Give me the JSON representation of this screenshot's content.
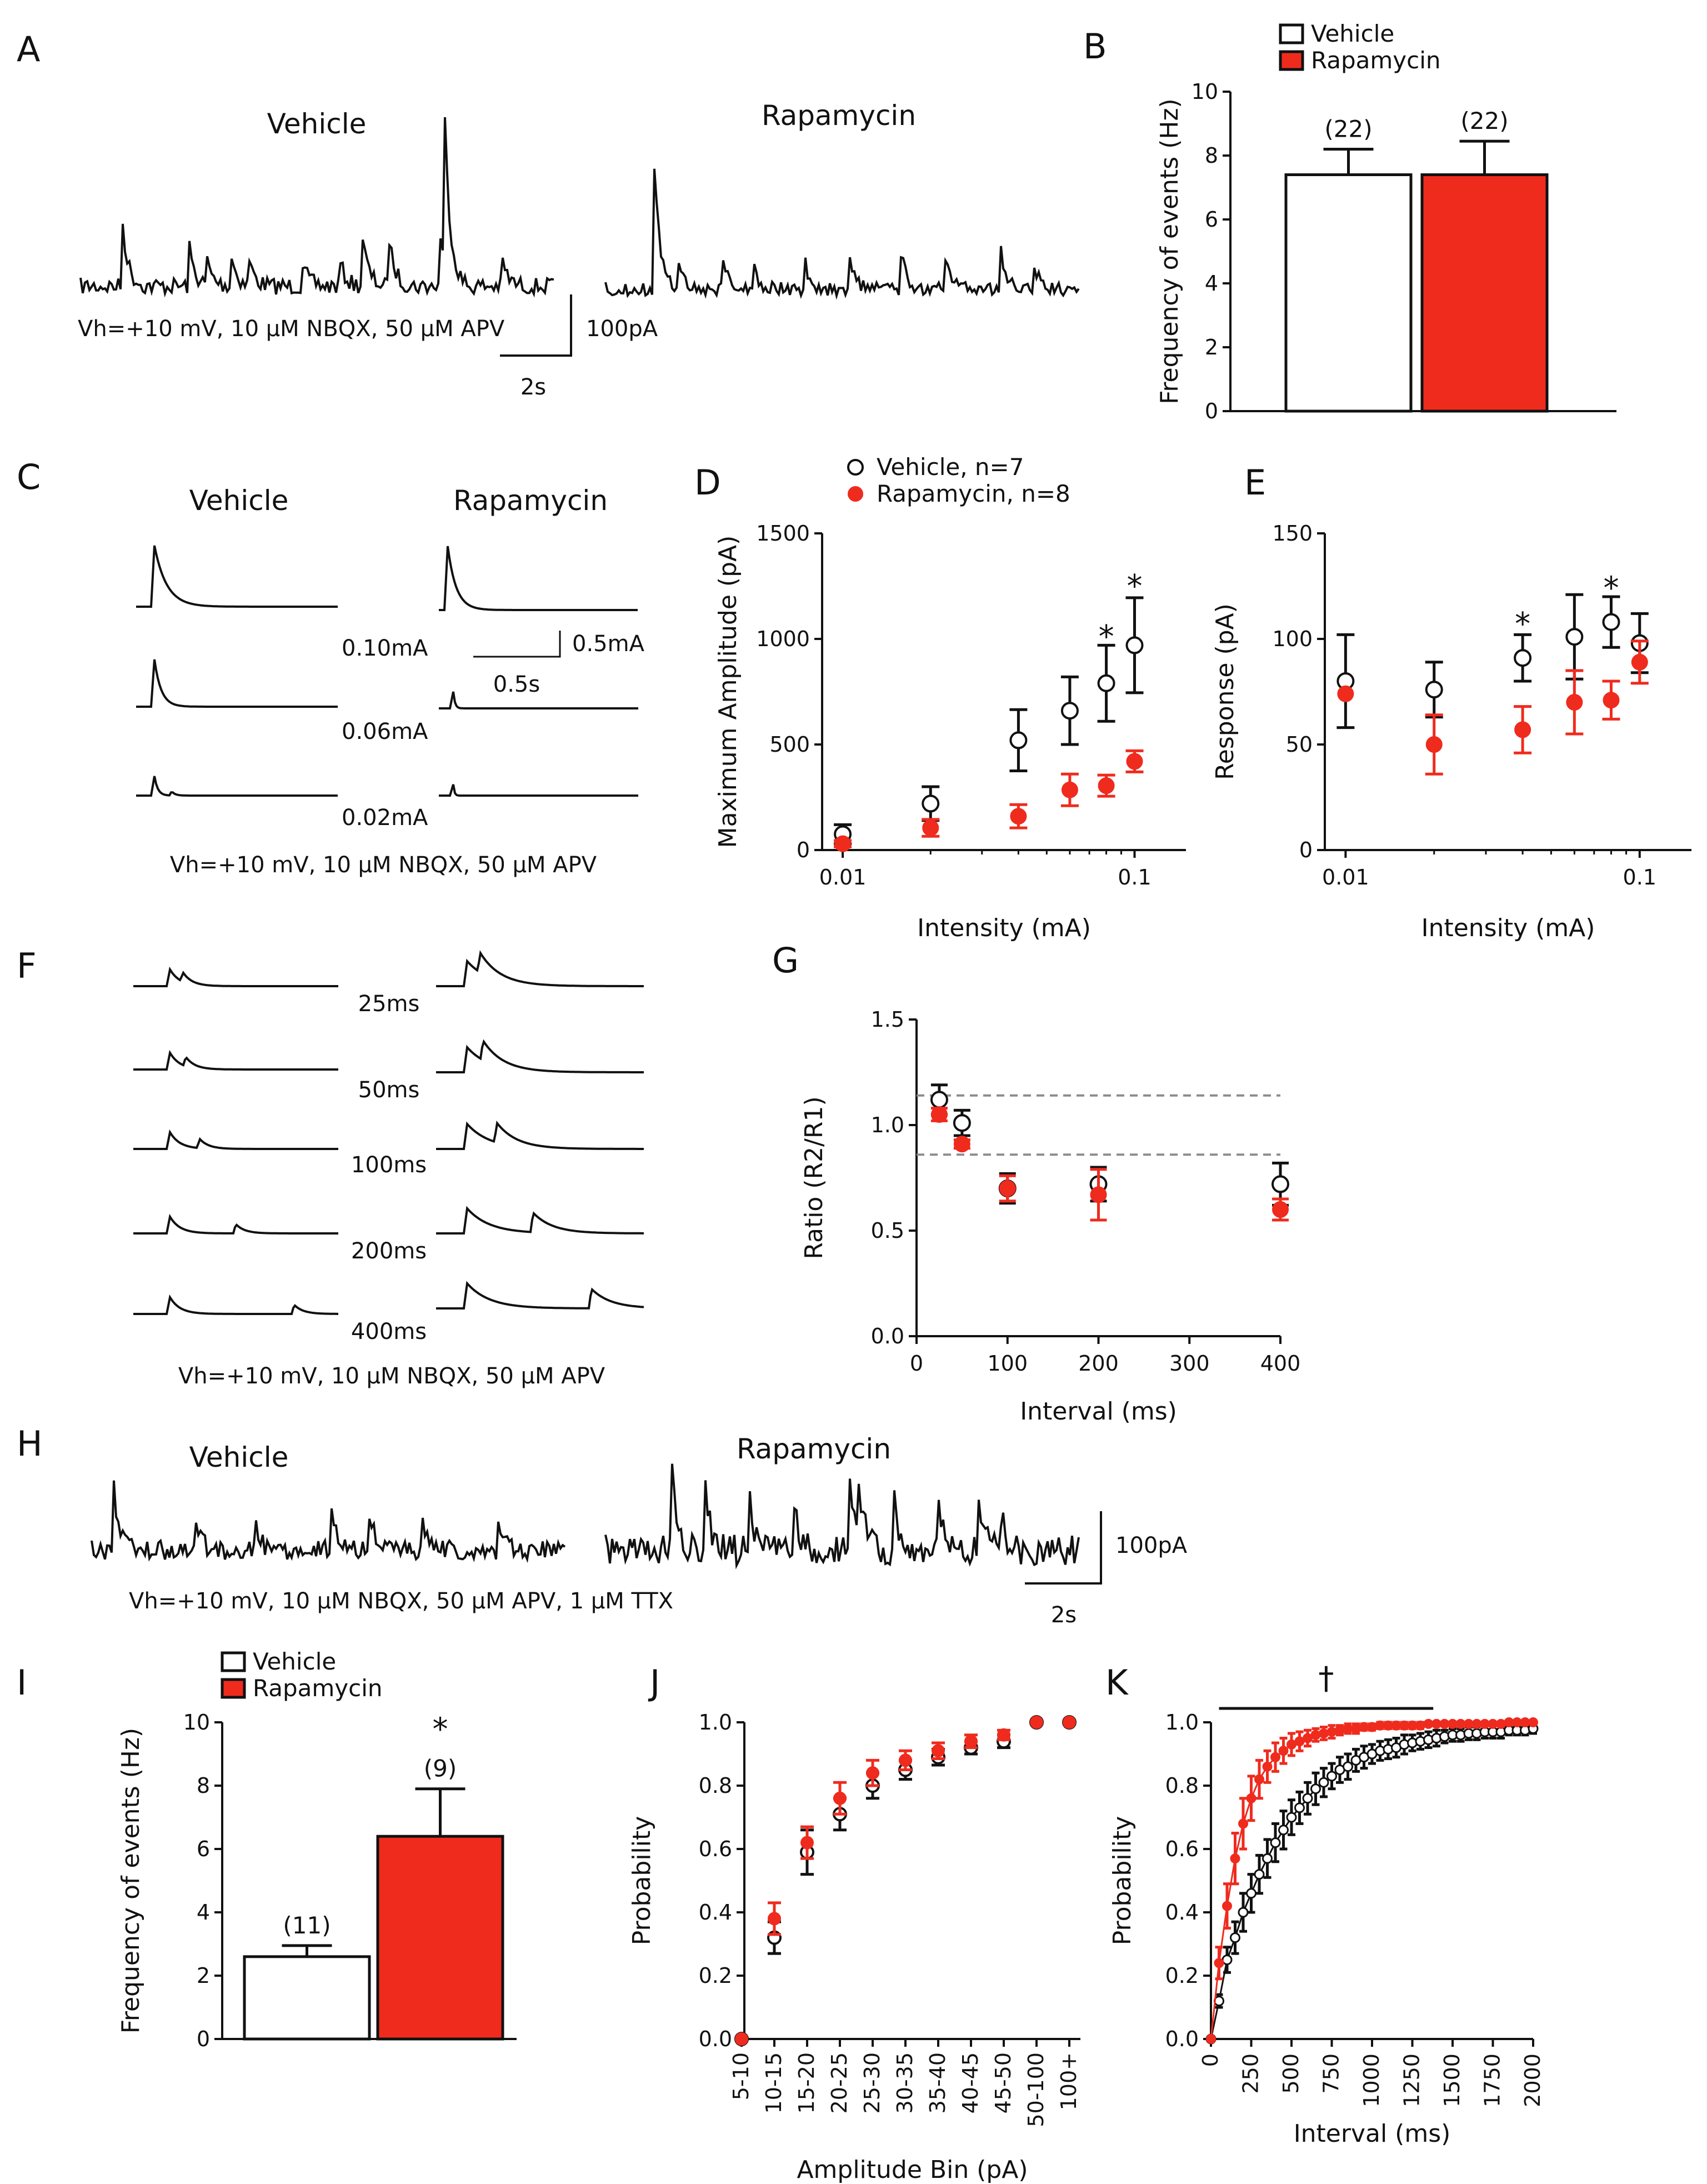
{
  "panels": {
    "A": {
      "label": "A",
      "vehicle": "Vehicle",
      "rapamycin": "Rapamycin",
      "conditions": "Vh=+10 mV, 10 μM NBQX, 50 μM APV",
      "scale_y": "100pA",
      "scale_x": "2s"
    },
    "C": {
      "label": "C",
      "vehicle": "Vehicle",
      "rapamycin": "Rapamycin",
      "intensities": [
        "0.10mA",
        "0.06mA",
        "0.02mA"
      ],
      "scale_y": "0.5mA",
      "scale_x": "0.5s",
      "conditions": "Vh=+10 mV, 10 μM NBQX, 50 μM APV"
    },
    "F": {
      "label": "F",
      "intervals": [
        "25ms",
        "50ms",
        "100ms",
        "200ms",
        "400ms"
      ],
      "conditions": "Vh=+10 mV, 10 μM NBQX, 50 μM APV"
    },
    "H": {
      "label": "H",
      "vehicle": "Vehicle",
      "rapamycin": "Rapamycin",
      "scale_y": "100pA",
      "scale_x": "2s",
      "conditions": "Vh=+10 mV, 10 μM NBQX, 50 μM APV, 1 μM TTX"
    }
  },
  "colors": {
    "vehicle": "#ffffff",
    "rapamycin": "#ef2b1e",
    "stroke": "#111111",
    "dash": "#8c8c8c"
  },
  "chart_data": [
    {
      "id": "B",
      "label": "B",
      "type": "bar",
      "legend": [
        "Vehicle",
        "Rapamycin"
      ],
      "categories": [
        "Vehicle",
        "Rapamycin"
      ],
      "values": [
        7.4,
        7.4
      ],
      "errors": [
        0.8,
        1.05
      ],
      "n_labels": [
        "(22)",
        "(22)"
      ],
      "ylabel": "Frequency of events (Hz)",
      "ylim": [
        0,
        10
      ],
      "yticks": [
        "0",
        "2",
        "4",
        "6",
        "8",
        "10"
      ]
    },
    {
      "id": "D",
      "label": "D",
      "type": "scatter",
      "xlabel": "Intensity (mA)",
      "ylabel": "Maximum Amplitude (pA)",
      "xscale": "log",
      "xlim": [
        0.0085,
        0.15
      ],
      "ylim": [
        0,
        1500
      ],
      "xticks": [
        "0.01",
        "0.1"
      ],
      "yticks": [
        "0",
        "500",
        "1000",
        "1500"
      ],
      "legend": [
        "Vehicle, n=7",
        "Rapamycin, n=8"
      ],
      "series": [
        {
          "name": "Vehicle, n=7",
          "x": [
            0.01,
            0.02,
            0.04,
            0.06,
            0.08,
            0.1
          ],
          "y": [
            75,
            220,
            520,
            660,
            790,
            970
          ],
          "err": [
            45,
            80,
            145,
            160,
            180,
            225
          ]
        },
        {
          "name": "Rapamycin, n=8",
          "x": [
            0.01,
            0.02,
            0.04,
            0.06,
            0.08,
            0.1
          ],
          "y": [
            30,
            105,
            160,
            285,
            305,
            420
          ],
          "err": [
            15,
            40,
            55,
            75,
            50,
            50
          ]
        }
      ],
      "stars": [
        {
          "x": 0.08,
          "y": 1000,
          "text": "*"
        },
        {
          "x": 0.1,
          "y": 1240,
          "text": "*"
        }
      ]
    },
    {
      "id": "E",
      "label": "E",
      "type": "scatter",
      "xlabel": "Intensity (mA)",
      "ylabel": "Response (pA)",
      "xscale": "log",
      "xlim": [
        0.0085,
        0.15
      ],
      "ylim": [
        0,
        150
      ],
      "xticks": [
        "0.01",
        "0.1"
      ],
      "yticks": [
        "0",
        "50",
        "100",
        "150"
      ],
      "series": [
        {
          "name": "Vehicle",
          "x": [
            0.01,
            0.02,
            0.04,
            0.06,
            0.08,
            0.1
          ],
          "y": [
            80,
            76,
            91,
            101,
            108,
            98
          ],
          "err": [
            22,
            13,
            11,
            20,
            12,
            14
          ]
        },
        {
          "name": "Rapamycin",
          "x": [
            0.01,
            0.02,
            0.04,
            0.06,
            0.08,
            0.1
          ],
          "y": [
            74,
            50,
            57,
            70,
            71,
            89
          ],
          "err": [
            0,
            14,
            11,
            15,
            9,
            10
          ]
        }
      ],
      "stars": [
        {
          "x": 0.04,
          "y": 106,
          "text": "*"
        },
        {
          "x": 0.08,
          "y": 123,
          "text": "*"
        }
      ]
    },
    {
      "id": "G",
      "label": "G",
      "type": "scatter",
      "xlabel": "Interval (ms)",
      "ylabel": "Ratio (R2/R1)",
      "xlim": [
        0,
        400
      ],
      "ylim": [
        0,
        1.5
      ],
      "xticks": [
        "0",
        "100",
        "200",
        "300",
        "400"
      ],
      "yticks": [
        "0.0",
        "0.5",
        "1.0",
        "1.5"
      ],
      "hlines": [
        1.14,
        0.86
      ],
      "series": [
        {
          "name": "Vehicle",
          "x": [
            25,
            50,
            100,
            200,
            400
          ],
          "y": [
            1.12,
            1.01,
            0.7,
            0.72,
            0.72
          ],
          "err": [
            0.07,
            0.06,
            0.07,
            0.08,
            0.1
          ]
        },
        {
          "name": "Rapamycin",
          "x": [
            25,
            50,
            100,
            200,
            400
          ],
          "y": [
            1.05,
            0.91,
            0.7,
            0.67,
            0.6
          ],
          "err": [
            0.03,
            0.02,
            0.06,
            0.12,
            0.05
          ]
        }
      ]
    },
    {
      "id": "I",
      "label": "I",
      "type": "bar",
      "legend": [
        "Vehicle",
        "Rapamycin"
      ],
      "categories": [
        "Vehicle",
        "Rapamycin"
      ],
      "values": [
        2.6,
        6.4
      ],
      "errors": [
        0.35,
        1.5
      ],
      "n_labels": [
        "(11)",
        "(9)"
      ],
      "star": "*",
      "ylabel": "Frequency of events (Hz)",
      "ylim": [
        0,
        10
      ],
      "yticks": [
        "0",
        "2",
        "4",
        "6",
        "8",
        "10"
      ]
    },
    {
      "id": "J",
      "label": "J",
      "type": "scatter",
      "xlabel": "Amplitude Bin (pA)",
      "ylabel": "Probability",
      "ylim": [
        0,
        1.0
      ],
      "yticks": [
        "0.0",
        "0.2",
        "0.4",
        "0.6",
        "0.8",
        "1.0"
      ],
      "categories": [
        "5-10",
        "10-15",
        "15-20",
        "20-25",
        "25-30",
        "30-35",
        "35-40",
        "40-45",
        "45-50",
        "50-100",
        "100+"
      ],
      "series": [
        {
          "name": "Vehicle",
          "y": [
            0.0,
            0.32,
            0.59,
            0.71,
            0.8,
            0.85,
            0.89,
            0.92,
            0.94,
            1.0,
            1.0
          ],
          "err": [
            0,
            0.05,
            0.07,
            0.05,
            0.04,
            0.03,
            0.025,
            0.02,
            0.02,
            0,
            0
          ]
        },
        {
          "name": "Rapamycin",
          "y": [
            0.0,
            0.38,
            0.62,
            0.76,
            0.84,
            0.88,
            0.91,
            0.94,
            0.96,
            1.0,
            1.0
          ],
          "err": [
            0,
            0.05,
            0.05,
            0.05,
            0.04,
            0.03,
            0.025,
            0.02,
            0.015,
            0,
            0
          ]
        }
      ]
    },
    {
      "id": "K",
      "label": "K",
      "type": "line",
      "xlabel": "Interval (ms)",
      "ylabel": "Probability",
      "xlim": [
        0,
        2000
      ],
      "ylim": [
        0,
        1.0
      ],
      "xticks": [
        "0",
        "250",
        "500",
        "750",
        "1000",
        "1250",
        "1500",
        "1750",
        "2000"
      ],
      "yticks": [
        "0.0",
        "0.2",
        "0.4",
        "0.6",
        "0.8",
        "1.0"
      ],
      "sig_symbol": "†",
      "sig_range": [
        50,
        1380
      ],
      "series": [
        {
          "name": "Vehicle",
          "x": [
            0,
            50,
            100,
            150,
            200,
            250,
            300,
            350,
            400,
            450,
            500,
            550,
            600,
            650,
            700,
            750,
            800,
            850,
            900,
            950,
            1000,
            1050,
            1100,
            1150,
            1200,
            1250,
            1300,
            1350,
            1400,
            1450,
            1500,
            1550,
            1600,
            1650,
            1700,
            1750,
            1800,
            1850,
            1900,
            1950,
            2000
          ],
          "y": [
            0.0,
            0.12,
            0.25,
            0.32,
            0.4,
            0.46,
            0.52,
            0.57,
            0.62,
            0.66,
            0.7,
            0.73,
            0.76,
            0.79,
            0.81,
            0.83,
            0.85,
            0.86,
            0.88,
            0.89,
            0.9,
            0.91,
            0.915,
            0.92,
            0.93,
            0.935,
            0.94,
            0.945,
            0.95,
            0.955,
            0.96,
            0.96,
            0.965,
            0.965,
            0.97,
            0.97,
            0.97,
            0.975,
            0.975,
            0.975,
            0.98
          ],
          "err": [
            0,
            0.02,
            0.04,
            0.05,
            0.06,
            0.06,
            0.06,
            0.06,
            0.06,
            0.06,
            0.055,
            0.05,
            0.05,
            0.05,
            0.045,
            0.04,
            0.04,
            0.04,
            0.035,
            0.035,
            0.03,
            0.03,
            0.03,
            0.03,
            0.03,
            0.025,
            0.025,
            0.025,
            0.025,
            0.02,
            0.02,
            0.02,
            0.02,
            0.02,
            0.02,
            0.02,
            0.02,
            0.015,
            0.015,
            0.015,
            0.015
          ]
        },
        {
          "name": "Rapamycin",
          "x": [
            0,
            50,
            100,
            150,
            200,
            250,
            300,
            350,
            400,
            450,
            500,
            550,
            600,
            650,
            700,
            750,
            800,
            850,
            900,
            950,
            1000,
            1050,
            1100,
            1150,
            1200,
            1250,
            1300,
            1350,
            1400,
            1450,
            1500,
            1550,
            1600,
            1650,
            1700,
            1750,
            1800,
            1850,
            1900,
            1950,
            2000
          ],
          "y": [
            0.0,
            0.24,
            0.42,
            0.57,
            0.68,
            0.76,
            0.82,
            0.86,
            0.89,
            0.91,
            0.93,
            0.94,
            0.95,
            0.96,
            0.965,
            0.97,
            0.975,
            0.98,
            0.98,
            0.985,
            0.985,
            0.99,
            0.99,
            0.99,
            0.99,
            0.99,
            0.99,
            0.995,
            0.995,
            0.995,
            0.995,
            0.995,
            0.995,
            0.995,
            0.995,
            0.995,
            0.995,
            1.0,
            1.0,
            1.0,
            1.0
          ],
          "err": [
            0,
            0.05,
            0.07,
            0.08,
            0.08,
            0.07,
            0.06,
            0.05,
            0.045,
            0.04,
            0.035,
            0.03,
            0.025,
            0.02,
            0.02,
            0.02,
            0.015,
            0.015,
            0.015,
            0.01,
            0.01,
            0.01,
            0.01,
            0.01,
            0.01,
            0.01,
            0.01,
            0.005,
            0.005,
            0.005,
            0.005,
            0.005,
            0.005,
            0.005,
            0.005,
            0.005,
            0.005,
            0,
            0,
            0,
            0
          ]
        }
      ]
    }
  ]
}
